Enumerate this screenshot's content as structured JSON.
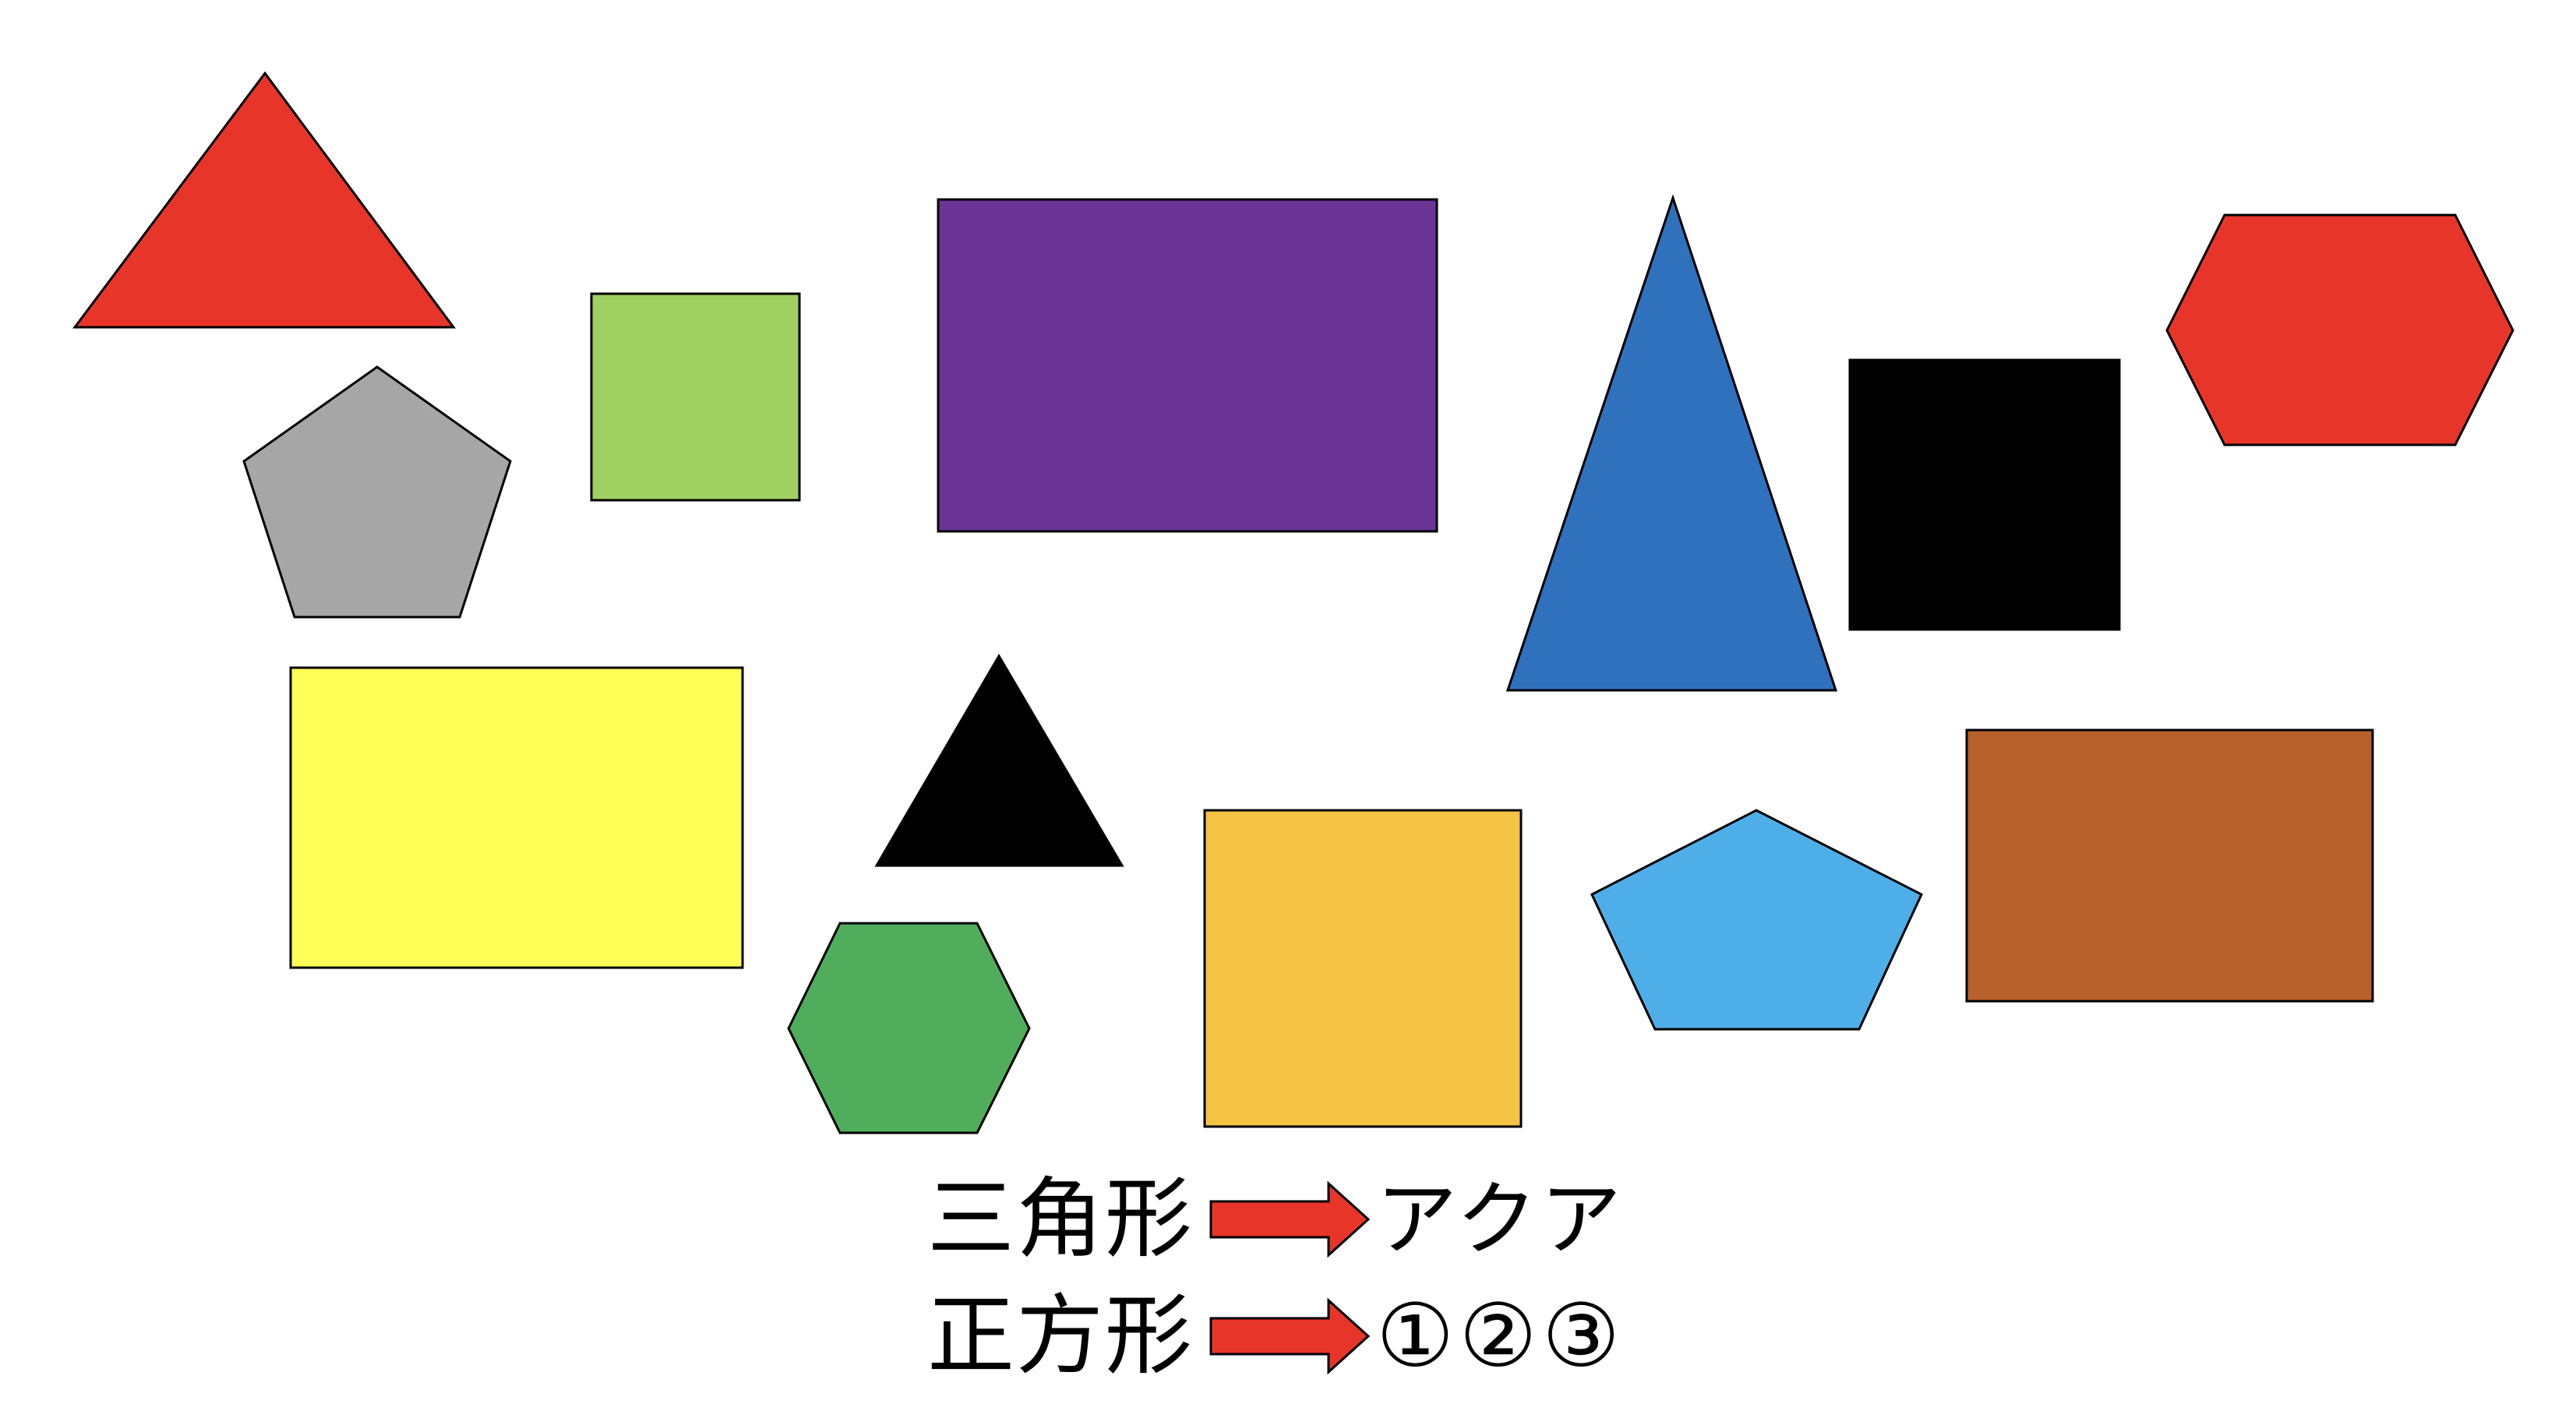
{
  "shapes": [
    {
      "id": "red-triangle",
      "kind": "triangle",
      "fill": "#E8352A"
    },
    {
      "id": "gray-pentagon",
      "kind": "pentagon",
      "fill": "#A6A6A6"
    },
    {
      "id": "green-square",
      "kind": "square",
      "fill": "#A0CF62"
    },
    {
      "id": "purple-rectangle",
      "kind": "rectangle",
      "fill": "#6A3597"
    },
    {
      "id": "blue-triangle",
      "kind": "triangle",
      "fill": "#3071BE"
    },
    {
      "id": "black-square",
      "kind": "square",
      "fill": "#000000"
    },
    {
      "id": "red-hexagon",
      "kind": "hexagon",
      "fill": "#E8352A"
    },
    {
      "id": "yellow-rectangle",
      "kind": "rectangle",
      "fill": "#FFFF55"
    },
    {
      "id": "black-triangle",
      "kind": "triangle",
      "fill": "#000000"
    },
    {
      "id": "green-hexagon",
      "kind": "hexagon",
      "fill": "#50AD5B"
    },
    {
      "id": "orange-square",
      "kind": "square",
      "fill": "#F4C245"
    },
    {
      "id": "lightblue-pentagon",
      "kind": "pentagon",
      "fill": "#4EAEE8"
    },
    {
      "id": "brown-rectangle",
      "kind": "rectangle",
      "fill": "#B8612B"
    }
  ],
  "legend": {
    "arrow_color": "#E8352A",
    "rows": [
      {
        "label": "三角形",
        "value": "アクア"
      },
      {
        "label": "正方形",
        "value": "①②③"
      }
    ]
  }
}
